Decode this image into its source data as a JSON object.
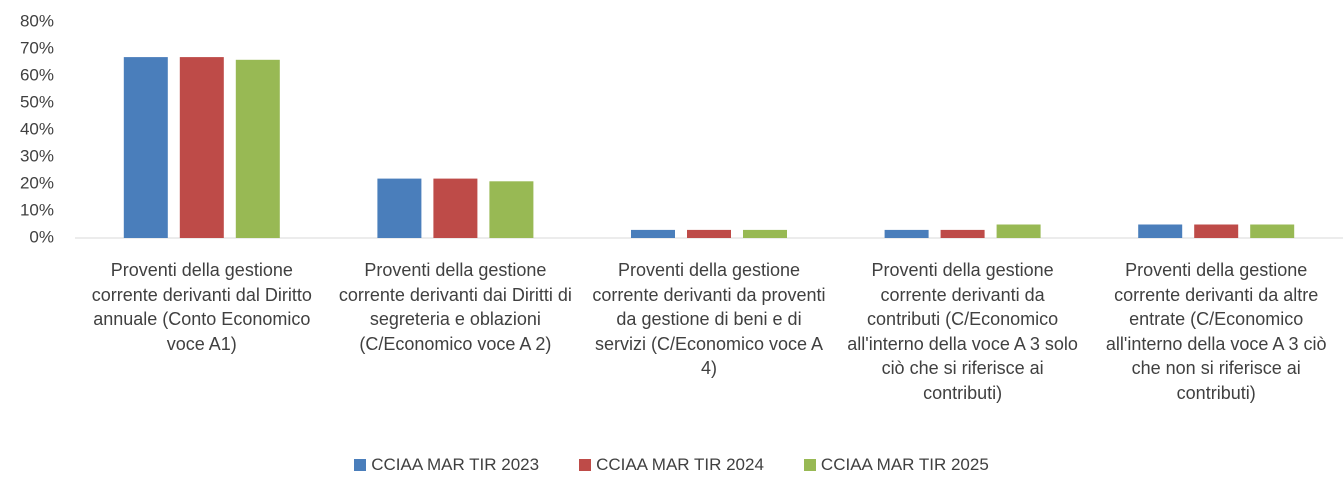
{
  "chart_data": {
    "type": "bar",
    "categories": [
      "Proventi della gestione corrente derivanti dal Diritto annuale (Conto Economico voce A1)",
      "Proventi della gestione corrente derivanti dai Diritti di segreteria e oblazioni (C/Economico voce A 2)",
      "Proventi della gestione corrente derivanti da proventi da gestione di beni e di servizi (C/Economico voce A 4)",
      "Proventi della gestione corrente derivanti da contributi (C/Economico all'interno della voce A 3 solo ciò che si riferisce ai contributi)",
      "Proventi della gestione corrente derivanti da altre entrate (C/Economico all'interno della voce A 3 ciò che non si riferisce ai contributi)"
    ],
    "series": [
      {
        "name": "CCIAA MAR TIR 2023",
        "color": "#4a7ebb",
        "values": [
          67,
          22,
          3,
          3,
          5
        ]
      },
      {
        "name": "CCIAA MAR TIR 2024",
        "color": "#be4b48",
        "values": [
          67,
          22,
          3,
          3,
          5
        ]
      },
      {
        "name": "CCIAA MAR TIR 2025",
        "color": "#98b954",
        "values": [
          66,
          21,
          3,
          5,
          5
        ]
      }
    ],
    "ylim": [
      0,
      80
    ],
    "yticks": [
      {
        "value": 0,
        "label": "0%"
      },
      {
        "value": 10,
        "label": "10%"
      },
      {
        "value": 20,
        "label": "20%"
      },
      {
        "value": 30,
        "label": "30%"
      },
      {
        "value": 40,
        "label": "40%"
      },
      {
        "value": 50,
        "label": "50%"
      },
      {
        "value": 60,
        "label": "60%"
      },
      {
        "value": 70,
        "label": "70%"
      },
      {
        "value": 80,
        "label": "80%"
      }
    ],
    "legend": "bottom",
    "grid": false
  }
}
